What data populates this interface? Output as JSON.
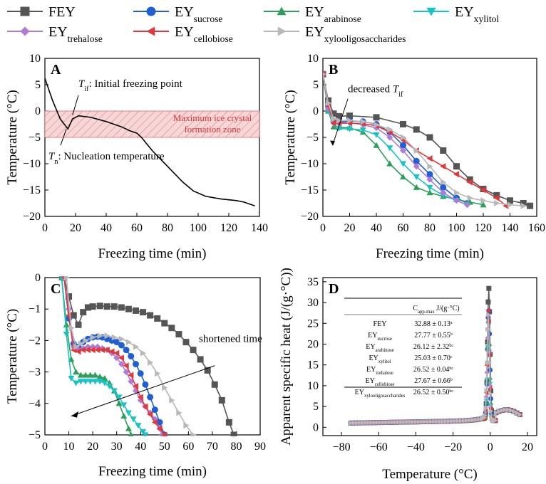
{
  "legend": [
    {
      "name": "FEY",
      "sub": "",
      "color": "#555555",
      "marker": "square"
    },
    {
      "name": "EY",
      "sub": "sucrose",
      "color": "#1f5fd6",
      "marker": "circle"
    },
    {
      "name": "EY",
      "sub": "arabinose",
      "color": "#2e9e5b",
      "marker": "triangle-up"
    },
    {
      "name": "EY",
      "sub": "xylitol",
      "color": "#17c3c3",
      "marker": "triangle-down"
    },
    {
      "name": "EY",
      "sub": "trehalose",
      "color": "#b07ad8",
      "marker": "diamond"
    },
    {
      "name": "EY",
      "sub": "cellobiose",
      "color": "#e0383b",
      "marker": "triangle-left"
    },
    {
      "name": "EY",
      "sub": "xylooligosaccharides",
      "color": "#b8b8b8",
      "marker": "triangle-right"
    }
  ],
  "chart_data": [
    {
      "panel": "A",
      "type": "line",
      "xlabel": "Freezing time (min)",
      "ylabel": "Temperature (°C)",
      "xlim": [
        0,
        140
      ],
      "ylim": [
        -20,
        10
      ],
      "xticks": [
        0,
        20,
        40,
        60,
        80,
        100,
        120,
        140
      ],
      "yticks": [
        -20,
        -15,
        -10,
        -5,
        0,
        5,
        10
      ],
      "zone": {
        "ymin": -5,
        "ymax": 0,
        "label1": "Maximum ice crystal",
        "label2": "formation zone"
      },
      "annotations": {
        "tif_sym": "T",
        "tif_sub": "if",
        "tif_text": ": Initial freezing point",
        "tn_sym": "T",
        "tn_sub": "n",
        "tn_text": ": Nucleation temperature"
      },
      "series": [
        {
          "name": "FEY",
          "x": [
            0,
            5,
            10,
            15,
            18,
            22,
            30,
            40,
            50,
            55,
            60,
            63,
            70,
            80,
            90,
            97,
            105,
            115,
            125,
            130,
            137
          ],
          "y": [
            6.2,
            2,
            -1.5,
            -3.4,
            -1.5,
            -0.9,
            -1.2,
            -2,
            -3,
            -3.7,
            -4.2,
            -5,
            -7.5,
            -10.5,
            -13.5,
            -15.2,
            -16.2,
            -16.7,
            -17,
            -17.3,
            -18
          ]
        }
      ]
    },
    {
      "panel": "B",
      "type": "line",
      "xlabel": "Freezing time (min)",
      "ylabel": "Temperature (°C)",
      "xlim": [
        0,
        160
      ],
      "ylim": [
        -20,
        10
      ],
      "xticks": [
        0,
        20,
        40,
        60,
        80,
        100,
        120,
        140,
        160
      ],
      "yticks": [
        -20,
        -15,
        -10,
        -5,
        0,
        5,
        10
      ],
      "annotation": {
        "text": "decreased ",
        "sym": "T",
        "sub": "if"
      },
      "series": [
        {
          "name": "FEY",
          "x": [
            0,
            4,
            8,
            12,
            20,
            40,
            60,
            70,
            80,
            90,
            100,
            110,
            120,
            130,
            140,
            150,
            155
          ],
          "y": [
            7,
            2,
            -0.5,
            -1,
            -0.9,
            -1.2,
            -2.5,
            -3.5,
            -5,
            -7.5,
            -10.5,
            -13,
            -14.8,
            -16,
            -17,
            -17.5,
            -18
          ]
        },
        {
          "name": "EY sucrose",
          "x": [
            0,
            4,
            8,
            12,
            20,
            30,
            40,
            50,
            60,
            70,
            80,
            90,
            100,
            108
          ],
          "y": [
            7,
            1,
            -2,
            -2.1,
            -1.9,
            -2,
            -2.5,
            -4,
            -6.5,
            -9.5,
            -12,
            -14.5,
            -16.5,
            -17.5
          ]
        },
        {
          "name": "EY arabinose",
          "x": [
            0,
            4,
            8,
            12,
            20,
            30,
            40,
            50,
            60,
            70,
            80,
            90,
            100,
            110,
            120
          ],
          "y": [
            7,
            0,
            -3,
            -3.1,
            -3.2,
            -4,
            -6.5,
            -10,
            -12.5,
            -14.5,
            -15.5,
            -16.2,
            -16.8,
            -17.3,
            -17.8
          ]
        },
        {
          "name": "EY xylitol",
          "x": [
            0,
            4,
            8,
            12,
            20,
            30,
            40,
            50,
            60,
            70,
            80,
            90,
            100,
            108
          ],
          "y": [
            7,
            0,
            -2.5,
            -3.3,
            -3.4,
            -3.6,
            -4.5,
            -7,
            -10,
            -12.5,
            -14.5,
            -16,
            -17,
            -17.8
          ]
        },
        {
          "name": "EY trehalose",
          "x": [
            0,
            4,
            8,
            12,
            20,
            30,
            40,
            50,
            60,
            70,
            80,
            90,
            100,
            108
          ],
          "y": [
            7,
            0.5,
            -2.3,
            -2.3,
            -2.2,
            -2.6,
            -3.2,
            -5,
            -7.5,
            -10.5,
            -13,
            -15.5,
            -17,
            -17.8
          ]
        },
        {
          "name": "EY cellobiose",
          "x": [
            0,
            4,
            8,
            12,
            20,
            30,
            40,
            50,
            60,
            70,
            80,
            90,
            100,
            110,
            120,
            130,
            137
          ],
          "y": [
            7,
            1,
            -2.3,
            -2.3,
            -2.3,
            -2.4,
            -2.8,
            -4,
            -5.5,
            -7.5,
            -9,
            -10.5,
            -12,
            -13.5,
            -15,
            -16.5,
            -18
          ]
        },
        {
          "name": "EY xylooligosaccharides",
          "x": [
            0,
            4,
            8,
            12,
            20,
            30,
            40,
            50,
            60,
            70,
            80,
            90,
            100,
            110,
            120,
            130,
            140,
            150
          ],
          "y": [
            7,
            1.5,
            -1.5,
            -1.8,
            -1.8,
            -2,
            -2.6,
            -3.5,
            -5,
            -7.5,
            -10.5,
            -13.5,
            -15.5,
            -16.5,
            -17,
            -17.5,
            -17.8,
            -18
          ]
        }
      ]
    },
    {
      "panel": "C",
      "type": "line",
      "xlabel": "Freezing time (min)",
      "ylabel": "Temperature (°C)",
      "xlim": [
        0,
        90
      ],
      "ylim": [
        -5,
        0
      ],
      "xticks": [
        0,
        10,
        20,
        30,
        40,
        50,
        60,
        70,
        80,
        90
      ],
      "yticks": [
        -5,
        -4,
        -3,
        -2,
        -1,
        0
      ],
      "annotation": {
        "text": "shortened time"
      },
      "series": [
        {
          "name": "FEY",
          "x": [
            8,
            10,
            12,
            14,
            16,
            18,
            20,
            23,
            26,
            29,
            32,
            35,
            38,
            41,
            44,
            47,
            50,
            53,
            56,
            59,
            62,
            65,
            68,
            71,
            74,
            77,
            79
          ],
          "y": [
            0,
            -0.6,
            -1.2,
            -1.5,
            -1.1,
            -0.95,
            -0.92,
            -0.9,
            -0.92,
            -0.92,
            -0.95,
            -1,
            -1.05,
            -1.1,
            -1.2,
            -1.3,
            -1.45,
            -1.6,
            -1.8,
            -2.05,
            -2.3,
            -2.6,
            -2.95,
            -3.4,
            -3.9,
            -4.6,
            -5
          ]
        },
        {
          "name": "EY sucrose",
          "x": [
            8,
            10,
            12,
            14,
            16,
            18,
            20,
            22,
            24,
            26,
            28,
            30,
            32,
            34,
            36,
            38,
            40,
            42,
            44,
            46,
            48,
            50
          ],
          "y": [
            0,
            -1.3,
            -2.1,
            -2.2,
            -2.05,
            -1.95,
            -1.9,
            -1.88,
            -1.9,
            -1.95,
            -2,
            -2.05,
            -2.15,
            -2.3,
            -2.5,
            -2.75,
            -3.05,
            -3.4,
            -3.8,
            -4.2,
            -4.6,
            -5
          ]
        },
        {
          "name": "EY arabinose",
          "x": [
            7,
            9,
            11,
            13,
            15,
            17,
            19,
            21,
            23,
            25,
            27,
            29,
            31,
            33,
            35,
            36
          ],
          "y": [
            0,
            -1.5,
            -2.6,
            -3,
            -3.1,
            -3.1,
            -3.1,
            -3.1,
            -3.15,
            -3.2,
            -3.35,
            -3.6,
            -4,
            -4.4,
            -4.8,
            -5
          ]
        },
        {
          "name": "EY xylitol",
          "x": [
            7,
            9,
            11,
            13,
            15,
            17,
            19,
            21,
            23,
            25,
            27,
            29,
            31,
            33,
            35,
            37,
            39,
            41,
            42
          ],
          "y": [
            0,
            -1.8,
            -3.2,
            -3.35,
            -3.3,
            -3.3,
            -3.3,
            -3.3,
            -3.3,
            -3.35,
            -3.45,
            -3.6,
            -3.8,
            -4.05,
            -4.3,
            -4.5,
            -4.7,
            -4.9,
            -5
          ]
        },
        {
          "name": "EY trehalose",
          "x": [
            8,
            10,
            12,
            14,
            16,
            18,
            20,
            22,
            24,
            26,
            28,
            30,
            32,
            34,
            36,
            38,
            40,
            42,
            44,
            46,
            48,
            49
          ],
          "y": [
            0,
            -1,
            -2.2,
            -2.3,
            -2.25,
            -2.2,
            -2.2,
            -2.2,
            -2.25,
            -2.3,
            -2.4,
            -2.55,
            -2.75,
            -3,
            -3.3,
            -3.6,
            -3.9,
            -4.1,
            -4.3,
            -4.5,
            -4.8,
            -5
          ]
        },
        {
          "name": "EY cellobiose",
          "x": [
            8,
            10,
            12,
            14,
            16,
            18,
            20,
            22,
            24,
            26,
            28,
            30,
            32,
            34,
            36,
            38,
            40,
            42,
            44,
            46,
            48,
            50
          ],
          "y": [
            0,
            -1.2,
            -2.3,
            -2.35,
            -2.3,
            -2.3,
            -2.3,
            -2.3,
            -2.3,
            -2.3,
            -2.35,
            -2.4,
            -2.55,
            -2.8,
            -3.1,
            -3.45,
            -3.8,
            -4.1,
            -4.35,
            -4.6,
            -4.8,
            -5
          ]
        },
        {
          "name": "EY xylooligosaccharides",
          "x": [
            9,
            11,
            13,
            15,
            17,
            20,
            23,
            26,
            29,
            32,
            35,
            38,
            41,
            44,
            47,
            50,
            53,
            56,
            59,
            62
          ],
          "y": [
            0,
            -1.6,
            -2.2,
            -2.1,
            -2,
            -1.9,
            -1.85,
            -1.85,
            -1.9,
            -1.95,
            -2.05,
            -2.2,
            -2.4,
            -2.7,
            -3.05,
            -3.5,
            -3.9,
            -4.3,
            -4.7,
            -5
          ]
        }
      ]
    },
    {
      "panel": "D",
      "type": "scatter",
      "xlabel": "Temperature (°C)",
      "ylabel": "Apparent specific heat (J/(g·°C))",
      "xlim": [
        -90,
        25
      ],
      "ylim": [
        -2,
        36
      ],
      "xticks": [
        -80,
        -60,
        -40,
        -20,
        0,
        20
      ],
      "yticks": [
        0,
        5,
        10,
        15,
        20,
        25,
        30,
        35
      ],
      "table": {
        "header_sym": "C",
        "header_sub": "app-max",
        "header_unit": " J/(g·°C)",
        "rows": [
          {
            "name": "FEY",
            "sub": "",
            "value": "32.88 ± 0.13",
            "sup": "a"
          },
          {
            "name": "EY",
            "sub": "sucrose",
            "value": "27.77 ± 0.55",
            "sup": "b"
          },
          {
            "name": "EY",
            "sub": "arabinose",
            "value": "26.12 ± 2.32",
            "sup": "bc"
          },
          {
            "name": "EY",
            "sub": "xylitol",
            "value": "25.03 ± 0.70",
            "sup": "c"
          },
          {
            "name": "EY",
            "sub": "trehalose",
            "value": "26.52 ± 0.04",
            "sup": "bc"
          },
          {
            "name": "EY",
            "sub": "cellobiose",
            "value": "27.67 ± 0.66",
            "sup": "b"
          },
          {
            "name": "EY",
            "sub": "xylooligosaccharides",
            "value": "26.52 ± 0.50",
            "sup": "bc"
          }
        ]
      },
      "series": [
        {
          "name": "FEY",
          "peak": 32.88
        },
        {
          "name": "EY sucrose",
          "peak": 27.77
        },
        {
          "name": "EY arabinose",
          "peak": 26.12
        },
        {
          "name": "EY xylitol",
          "peak": 25.03
        },
        {
          "name": "EY trehalose",
          "peak": 26.52
        },
        {
          "name": "EY cellobiose",
          "peak": 27.67
        },
        {
          "name": "EY xylooligosaccharides",
          "peak": 26.52
        }
      ]
    }
  ]
}
